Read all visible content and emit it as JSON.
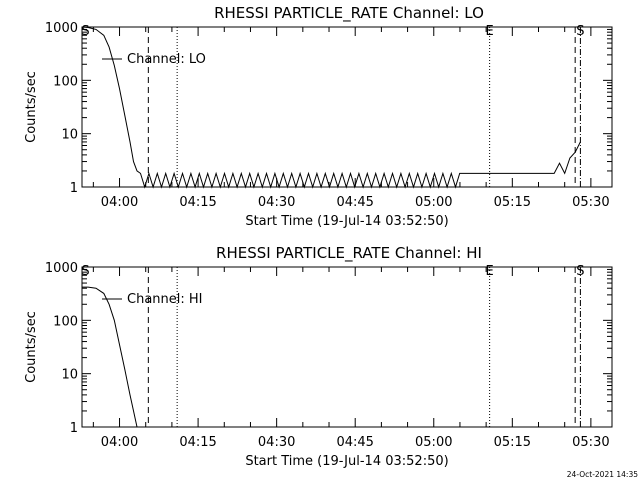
{
  "footer_date": "24-Oct-2021 14:35",
  "chart_data": [
    {
      "type": "line",
      "title": "RHESSI PARTICLE_RATE Channel: LO",
      "xlabel": "Start Time (19-Jul-14 03:52:50)",
      "ylabel": "Counts/sec",
      "y_scale": "log",
      "ylim": [
        1,
        1000
      ],
      "xlim_minutes_after_start": [
        0,
        101.2
      ],
      "x_tick_labels": [
        "04:00",
        "04:15",
        "04:30",
        "04:45",
        "05:00",
        "05:15",
        "05:30"
      ],
      "y_tick_labels": [
        "1",
        "10",
        "100",
        "1000"
      ],
      "legend": "Channel: LO",
      "legend_position": "upper-left",
      "markers": [
        {
          "label": "S",
          "time": "03:53:30",
          "style": "text"
        },
        {
          "label": "",
          "time": "04:05:30",
          "style": "dashed"
        },
        {
          "label": "",
          "time": "04:11:00",
          "style": "dotted"
        },
        {
          "label": "E",
          "time": "05:10:40",
          "style": "dotted"
        },
        {
          "label": "",
          "time": "05:27:00",
          "style": "dashed"
        },
        {
          "label": "S",
          "time": "05:28:00",
          "style": "dash-dot"
        }
      ],
      "series": [
        {
          "name": "Channel: LO",
          "segments": [
            {
              "x": [
                "03:52:50",
                "03:54:00",
                "03:55:30",
                "03:57:00",
                "03:58:00",
                "03:59:00",
                "04:00:00",
                "04:01:00",
                "04:02:00",
                "04:02:40",
                "04:03:20",
                "04:04:00"
              ],
              "y": [
                1000,
                980,
                900,
                700,
                420,
                190,
                70,
                22,
                7,
                3,
                2,
                1.8
              ]
            },
            {
              "x": [
                "04:04:00",
                "05:05:30"
              ],
              "y": [
                1.8,
                1.8
              ],
              "pattern": "toggle",
              "values": [
                1,
                1.8
              ]
            },
            {
              "x": [
                "05:05:30",
                "05:23:00"
              ],
              "y": [
                1.8,
                1.8
              ]
            },
            {
              "x": [
                "05:23:00",
                "05:24:00",
                "05:25:00",
                "05:26:00",
                "05:27:00",
                "05:28:00"
              ],
              "y": [
                1.8,
                2.8,
                1.8,
                3.5,
                4.5,
                7
              ]
            }
          ]
        }
      ]
    },
    {
      "type": "line",
      "title": "RHESSI PARTICLE_RATE Channel: HI",
      "xlabel": "Start Time (19-Jul-14 03:52:50)",
      "ylabel": "Counts/sec",
      "y_scale": "log",
      "ylim": [
        1,
        1000
      ],
      "xlim_minutes_after_start": [
        0,
        101.2
      ],
      "x_tick_labels": [
        "04:00",
        "04:15",
        "04:30",
        "04:45",
        "05:00",
        "05:15",
        "05:30"
      ],
      "y_tick_labels": [
        "1",
        "10",
        "100",
        "1000"
      ],
      "legend": "Channel: HI",
      "legend_position": "upper-left",
      "markers": [
        {
          "label": "S",
          "time": "03:53:30",
          "style": "text"
        },
        {
          "label": "",
          "time": "04:05:30",
          "style": "dashed"
        },
        {
          "label": "",
          "time": "04:11:00",
          "style": "dotted"
        },
        {
          "label": "E",
          "time": "05:10:40",
          "style": "dotted"
        },
        {
          "label": "",
          "time": "05:27:00",
          "style": "dashed"
        },
        {
          "label": "S",
          "time": "05:28:00",
          "style": "dash-dot"
        }
      ],
      "series": [
        {
          "name": "Channel: HI",
          "segments": [
            {
              "x": [
                "03:52:50",
                "03:54:00",
                "03:55:30",
                "03:57:00",
                "03:58:00",
                "03:59:00",
                "04:00:00",
                "04:01:00",
                "04:02:00",
                "04:02:40",
                "04:03:20"
              ],
              "y": [
                420,
                420,
                400,
                320,
                200,
                100,
                35,
                12,
                4,
                2,
                1
              ]
            }
          ]
        }
      ]
    }
  ]
}
